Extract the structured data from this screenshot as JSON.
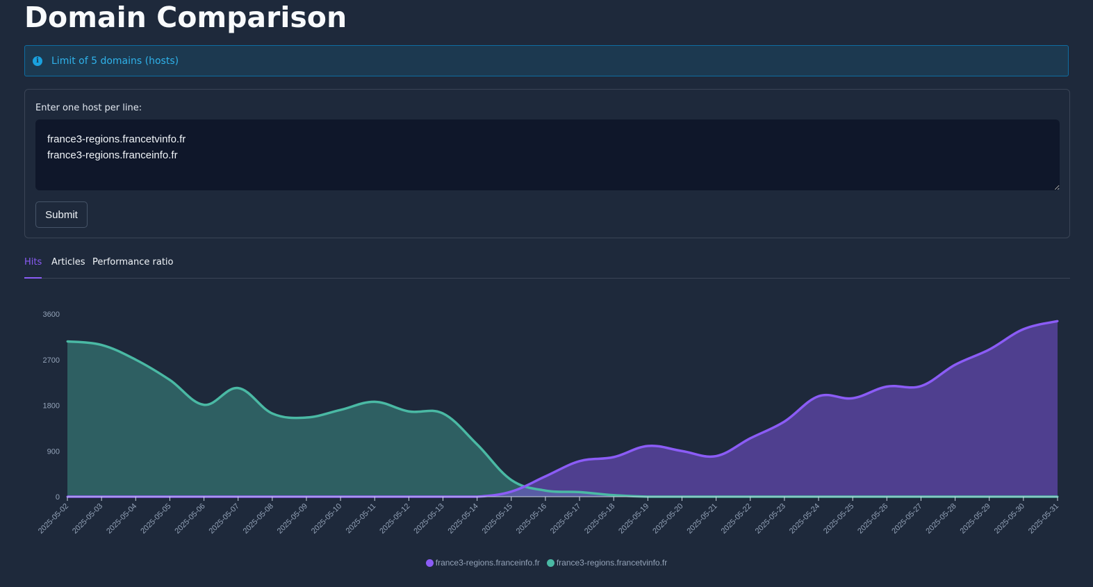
{
  "page": {
    "title": "Domain Comparison"
  },
  "info": {
    "icon": "info-icon",
    "text": "Limit of 5 domains (hosts)"
  },
  "form": {
    "label": "Enter one host per line:",
    "textarea_value": "france3-regions.francetvinfo.fr\nfrance3-regions.franceinfo.fr",
    "submit_label": "Submit"
  },
  "tabs": [
    {
      "label": "Hits",
      "active": true
    },
    {
      "label": "Articles",
      "active": false
    },
    {
      "label": "Performance ratio",
      "active": false
    }
  ],
  "colors": {
    "accent": "#8b5cf6",
    "teal": "#4ab9a4",
    "purple": "#8b5cf6"
  },
  "chart_data": {
    "type": "area",
    "title": "",
    "xlabel": "",
    "ylabel": "",
    "ylim": [
      0,
      3600
    ],
    "yticks": [
      0,
      900,
      1800,
      2700,
      3600
    ],
    "x": [
      "2025-05-02",
      "2025-05-03",
      "2025-05-04",
      "2025-05-05",
      "2025-05-06",
      "2025-05-07",
      "2025-05-08",
      "2025-05-09",
      "2025-05-10",
      "2025-05-11",
      "2025-05-12",
      "2025-05-13",
      "2025-05-14",
      "2025-05-15",
      "2025-05-16",
      "2025-05-17",
      "2025-05-18",
      "2025-05-19",
      "2025-05-20",
      "2025-05-21",
      "2025-05-22",
      "2025-05-23",
      "2025-05-24",
      "2025-05-25",
      "2025-05-26",
      "2025-05-27",
      "2025-05-28",
      "2025-05-29",
      "2025-05-30",
      "2025-05-31"
    ],
    "series": [
      {
        "name": "france3-regions.franceinfo.fr",
        "color": "#8b5cf6",
        "values": [
          0,
          0,
          0,
          0,
          0,
          0,
          0,
          0,
          0,
          0,
          0,
          0,
          0,
          100,
          400,
          700,
          780,
          1000,
          900,
          800,
          1150,
          1480,
          1980,
          1940,
          2170,
          2180,
          2600,
          2900,
          3300,
          3460
        ]
      },
      {
        "name": "france3-regions.francetvinfo.fr",
        "color": "#4ab9a4",
        "values": [
          3060,
          2990,
          2700,
          2300,
          1810,
          2140,
          1640,
          1560,
          1710,
          1870,
          1680,
          1640,
          1030,
          330,
          120,
          90,
          30,
          0,
          0,
          0,
          0,
          0,
          0,
          0,
          0,
          0,
          0,
          0,
          0,
          0
        ]
      }
    ],
    "legend_position": "bottom-center",
    "grid": false
  }
}
